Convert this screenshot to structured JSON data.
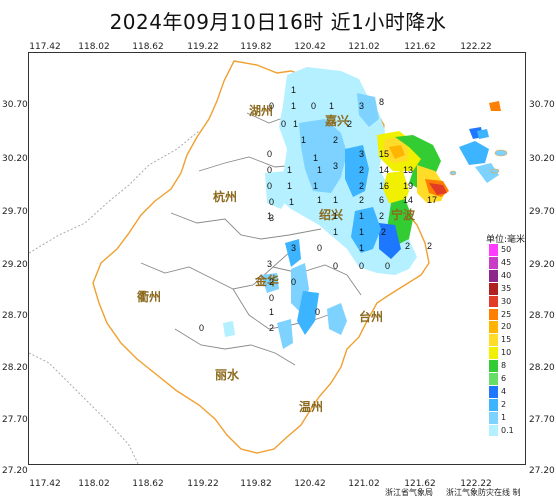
{
  "title": "2024年09月10日16时  近1小时降水",
  "lon_ticks": [
    "117.42",
    "118.02",
    "118.62",
    "119.22",
    "119.82",
    "120.42",
    "121.02",
    "121.62",
    "122.22"
  ],
  "lat_ticks": [
    "30.70",
    "30.20",
    "29.70",
    "29.20",
    "28.70",
    "28.20",
    "27.70",
    "27.20"
  ],
  "cities": [
    "湖州",
    "嘉兴",
    "杭州",
    "绍兴",
    "宁波",
    "衢州",
    "金华",
    "台州",
    "丽水",
    "温州"
  ],
  "legend": {
    "title": "单位:毫米",
    "levels": [
      "50",
      "45",
      "40",
      "35",
      "30",
      "25",
      "20",
      "15",
      "10",
      "8",
      "6",
      "4",
      "2",
      "1",
      "0.1"
    ],
    "colors": [
      "#ff3cff",
      "#c83cc8",
      "#8c288c",
      "#b02020",
      "#e03c28",
      "#ff7f00",
      "#ffb400",
      "#ffdc28",
      "#f0f000",
      "#33cc33",
      "#66dd66",
      "#1e78ff",
      "#3cb4ff",
      "#7dd2ff",
      "#b4f0ff"
    ]
  },
  "station_values": [
    "1",
    "0",
    "1",
    "0",
    "1",
    "3",
    "8",
    "0",
    "1",
    "1",
    "2",
    "2",
    "1",
    "0",
    "3",
    "15",
    "0",
    "1",
    "1",
    "3",
    "2",
    "14",
    "13",
    "0",
    "1",
    "1",
    "2",
    "16",
    "19",
    "1",
    "1",
    "2",
    "6",
    "14",
    "17",
    "1",
    "0",
    "1",
    "1",
    "3",
    "1",
    "2",
    "1",
    "1",
    "2",
    "2",
    "2",
    "1",
    "3",
    "0",
    "3",
    "0",
    "0",
    "0",
    "2",
    "0",
    "0",
    "1",
    "0",
    "2",
    "0"
  ],
  "credits": [
    "浙江省气象局",
    "浙江气象防灾在线 制"
  ]
}
